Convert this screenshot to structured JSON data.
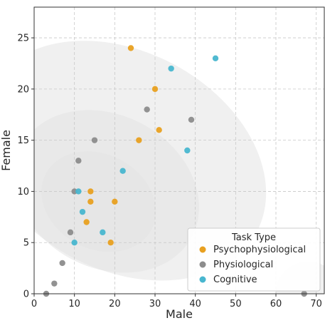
{
  "chart_data": {
    "type": "scatter",
    "title": "",
    "xlabel": "Male",
    "ylabel": "Female",
    "xlim": [
      0,
      72
    ],
    "ylim": [
      0,
      28
    ],
    "xticks": [
      0,
      10,
      20,
      30,
      40,
      50,
      60,
      70
    ],
    "yticks": [
      0,
      5,
      10,
      15,
      20,
      25
    ],
    "grid": true,
    "legend": {
      "title": "Task Type",
      "position": "lower-right"
    },
    "density_contours": "kde-shaded-gray",
    "series": [
      {
        "name": "Psychophysiological",
        "color": "#E8A020",
        "points": [
          [
            24,
            24
          ],
          [
            30,
            20
          ],
          [
            31,
            16
          ],
          [
            26,
            15
          ],
          [
            14,
            10
          ],
          [
            14,
            9
          ],
          [
            20,
            9
          ],
          [
            13,
            7
          ],
          [
            19,
            5
          ]
        ]
      },
      {
        "name": "Physiological",
        "color": "#8C8C8C",
        "points": [
          [
            28,
            18
          ],
          [
            39,
            17
          ],
          [
            15,
            15
          ],
          [
            11,
            13
          ],
          [
            10,
            10
          ],
          [
            9,
            6
          ],
          [
            7,
            3
          ],
          [
            5,
            1
          ],
          [
            3,
            0
          ],
          [
            67,
            0
          ]
        ]
      },
      {
        "name": "Cognitive",
        "color": "#48B6CF",
        "points": [
          [
            34,
            22
          ],
          [
            45,
            23
          ],
          [
            38,
            14
          ],
          [
            22,
            12
          ],
          [
            11,
            10
          ],
          [
            12,
            8
          ],
          [
            17,
            6
          ],
          [
            10,
            5
          ]
        ]
      }
    ]
  }
}
